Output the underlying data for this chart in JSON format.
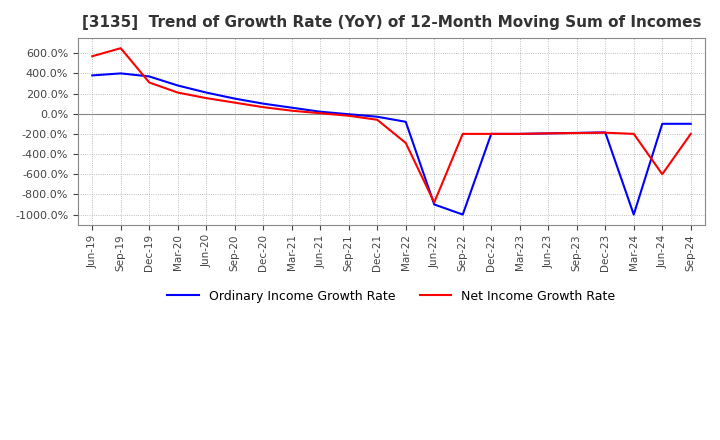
{
  "title": "[3135]  Trend of Growth Rate (YoY) of 12-Month Moving Sum of Incomes",
  "title_fontsize": 11,
  "background_color": "#ffffff",
  "grid_color": "#aaaaaa",
  "legend": [
    "Ordinary Income Growth Rate",
    "Net Income Growth Rate"
  ],
  "line_colors": [
    "blue",
    "red"
  ],
  "ylim": [
    -1100,
    750
  ],
  "yticks": [
    600,
    400,
    200,
    0,
    -200,
    -400,
    -600,
    -800,
    -1000
  ],
  "x_labels": [
    "Jun-19",
    "Sep-19",
    "Dec-19",
    "Mar-20",
    "Jun-20",
    "Sep-20",
    "Dec-20",
    "Mar-21",
    "Jun-21",
    "Sep-21",
    "Dec-21",
    "Mar-22",
    "Jun-22",
    "Sep-22",
    "Dec-22",
    "Mar-23",
    "Jun-23",
    "Sep-23",
    "Dec-23",
    "Mar-24",
    "Jun-24",
    "Sep-24"
  ],
  "ordinary_income": [
    380,
    400,
    370,
    280,
    210,
    150,
    100,
    60,
    20,
    -5,
    -30,
    -80,
    -900,
    -1000,
    -200,
    -200,
    -195,
    -190,
    -185,
    -1000,
    -100,
    -100
  ],
  "net_income": [
    570,
    650,
    310,
    210,
    155,
    110,
    65,
    30,
    5,
    -20,
    -60,
    -290,
    -880,
    -200,
    -200,
    -200,
    -195,
    -192,
    -188,
    -200,
    -600,
    -200
  ]
}
